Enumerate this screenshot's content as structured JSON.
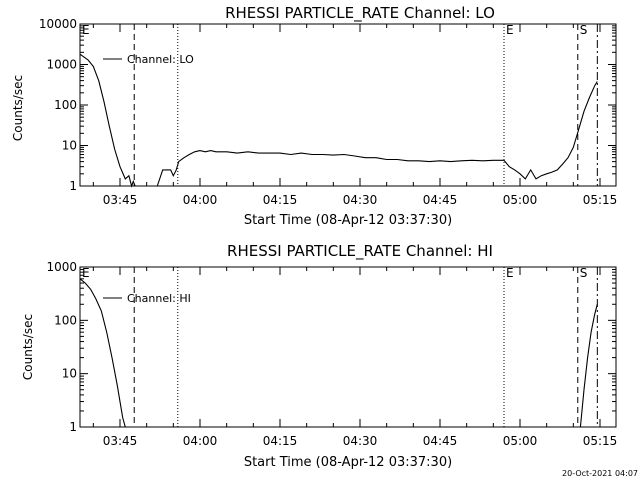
{
  "footer_timestamp": "20-Oct-2021 04:07",
  "chart_data": [
    {
      "type": "line",
      "title": "RHESSI PARTICLE_RATE Channel: LO",
      "ylabel": "Counts/sec",
      "xlabel": "Start Time (08-Apr-12 03:37:30)",
      "yscale": "log",
      "ylim": [
        1,
        10000
      ],
      "ytick_values": [
        1,
        10,
        100,
        1000,
        10000
      ],
      "ytick_labels": [
        "1",
        "10",
        "100",
        "1000",
        "10000"
      ],
      "xlim": [
        "03:37:30",
        "05:18:00"
      ],
      "xtick_labels": [
        "03:45",
        "04:00",
        "04:15",
        "04:30",
        "04:45",
        "05:00",
        "05:15"
      ],
      "legend": "Channel: LO",
      "legend_position": "top-left",
      "markers": [
        {
          "label": "E",
          "time": "03:37:30",
          "style": "dashed"
        },
        {
          "label": "",
          "time": "03:47:40",
          "style": "dashed"
        },
        {
          "label": "",
          "time": "03:55:50",
          "style": "dotted"
        },
        {
          "label": "E",
          "time": "04:57:00",
          "style": "dotted"
        },
        {
          "label": "S",
          "time": "05:10:50",
          "style": "dashed"
        },
        {
          "label": "",
          "time": "05:14:30",
          "style": "dashdot"
        }
      ],
      "series": [
        {
          "x": [
            "03:37:30",
            "03:39:00",
            "03:40:00",
            "03:41:00",
            "03:42:00",
            "03:43:00",
            "03:44:00",
            "03:45:00",
            "03:46:00",
            "03:46:40",
            "03:47:10",
            "03:47:30",
            "03:47:50",
            "03:48:20",
            "03:49:00",
            "03:50:00",
            "03:51:00",
            "03:52:00",
            "03:53:00",
            "03:53:40",
            "03:54:10",
            "03:54:30",
            "03:55:00",
            "03:55:30",
            "03:56:00",
            "03:57:00",
            "03:58:00",
            "03:59:00",
            "04:00:00",
            "04:01:00",
            "04:02:00",
            "04:03:00",
            "04:05:00",
            "04:07:00",
            "04:09:00",
            "04:11:00",
            "04:13:00",
            "04:15:00",
            "04:17:00",
            "04:19:00",
            "04:21:00",
            "04:23:00",
            "04:25:00",
            "04:27:00",
            "04:29:00",
            "04:31:00",
            "04:33:00",
            "04:35:00",
            "04:37:00",
            "04:39:00",
            "04:41:00",
            "04:43:00",
            "04:45:00",
            "04:47:00",
            "04:49:00",
            "04:51:00",
            "04:53:00",
            "04:55:00",
            "04:57:00",
            "04:58:00",
            "04:59:00",
            "05:00:00",
            "05:01:00",
            "05:02:00",
            "05:03:00",
            "05:04:00",
            "05:05:00",
            "05:06:00",
            "05:07:00",
            "05:08:00",
            "05:09:00",
            "05:10:00",
            "05:11:00",
            "05:12:00",
            "05:13:00",
            "05:14:00",
            "05:14:30"
          ],
          "y": [
            1800,
            1300,
            900,
            400,
            120,
            30,
            8,
            3,
            1.5,
            1.8,
            1,
            1.3,
            1,
            1,
            1,
            1,
            1,
            1,
            2.5,
            2.5,
            2.5,
            2.5,
            1.8,
            2.4,
            4,
            5,
            6,
            7,
            7.5,
            7,
            7.5,
            7,
            7,
            6.5,
            7,
            6.5,
            6.5,
            6.5,
            6,
            6.5,
            6,
            6,
            5.8,
            6,
            5.5,
            5,
            5,
            4.5,
            4.5,
            4.2,
            4.2,
            4,
            4.2,
            4,
            4.2,
            4.3,
            4.2,
            4.3,
            4.3,
            3,
            2.5,
            2,
            1.5,
            2.5,
            1.5,
            1.8,
            2,
            2.2,
            2.5,
            3.5,
            5,
            9,
            25,
            70,
            150,
            300,
            380
          ]
        }
      ]
    },
    {
      "type": "line",
      "title": "RHESSI PARTICLE_RATE Channel: HI",
      "ylabel": "Counts/sec",
      "xlabel": "Start Time (08-Apr-12 03:37:30)",
      "yscale": "log",
      "ylim": [
        1,
        1000
      ],
      "ytick_values": [
        1,
        10,
        100,
        1000
      ],
      "ytick_labels": [
        "1",
        "10",
        "100",
        "1000"
      ],
      "xlim": [
        "03:37:30",
        "05:18:00"
      ],
      "xtick_labels": [
        "03:45",
        "04:00",
        "04:15",
        "04:30",
        "04:45",
        "05:00",
        "05:15"
      ],
      "legend": "Channel: HI",
      "legend_position": "top-left",
      "markers": [
        {
          "label": "E",
          "time": "03:37:30",
          "style": "dashed"
        },
        {
          "label": "",
          "time": "03:47:40",
          "style": "dashed"
        },
        {
          "label": "",
          "time": "03:55:50",
          "style": "dotted"
        },
        {
          "label": "E",
          "time": "04:57:00",
          "style": "dotted"
        },
        {
          "label": "S",
          "time": "05:10:50",
          "style": "dashed"
        },
        {
          "label": "",
          "time": "05:14:30",
          "style": "dashdot"
        }
      ],
      "series": [
        {
          "x": [
            "03:37:30",
            "03:38:30",
            "03:39:30",
            "03:40:30",
            "03:41:30",
            "03:42:30",
            "03:43:30",
            "03:44:30",
            "03:45:00",
            "03:45:30",
            "03:46:00"
          ],
          "y": [
            600,
            500,
            380,
            250,
            150,
            60,
            20,
            6,
            3,
            1.5,
            1
          ]
        },
        {
          "x": [
            "05:11:20",
            "05:12:00",
            "05:12:40",
            "05:13:20",
            "05:14:00",
            "05:14:30"
          ],
          "y": [
            1,
            5,
            20,
            60,
            130,
            200
          ]
        }
      ]
    }
  ]
}
